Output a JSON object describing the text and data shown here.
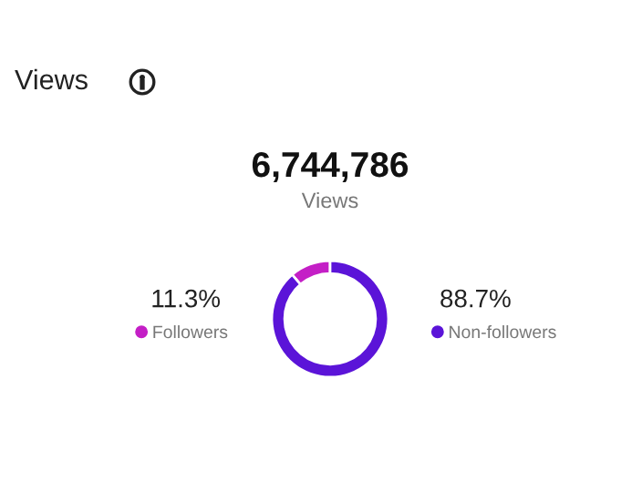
{
  "chart_data": {
    "type": "donut",
    "title": "Views",
    "annotations": [
      "6,744,786",
      "Views"
    ],
    "categories": [
      "Followers",
      "Non-followers"
    ],
    "values": [
      11.3,
      88.7
    ],
    "colors": [
      "#c41fc6",
      "#5b14d8"
    ],
    "value_labels": [
      "11.3%",
      "88.7%"
    ],
    "legend": "bottom"
  }
}
